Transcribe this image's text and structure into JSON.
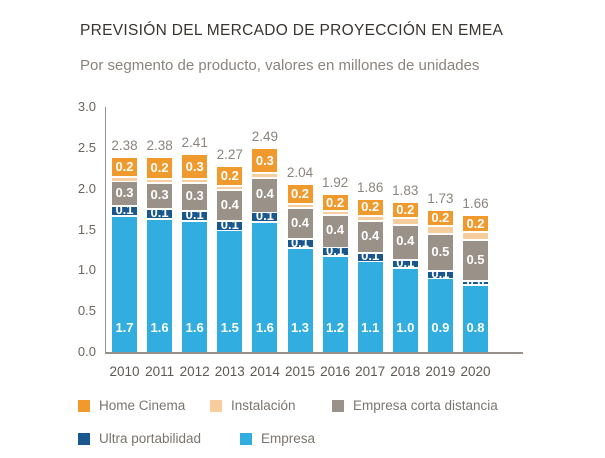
{
  "chart_data": {
    "type": "bar",
    "stacked": true,
    "title": "PREVISIÓN DEL MERCADO DE PROYECCIÓN EN EMEA",
    "subtitle": "Por segmento de producto, valores en millones de unidades",
    "categories": [
      "2010",
      "2011",
      "2012",
      "2013",
      "2014",
      "2015",
      "2016",
      "2017",
      "2018",
      "2019",
      "2020"
    ],
    "total_labels": [
      "2.38",
      "2.38",
      "2.41",
      "2.27",
      "2.49",
      "2.04",
      "1.92",
      "1.86",
      "1.83",
      "1.73",
      "1.66"
    ],
    "ylabel": "millones de unidades",
    "ylim": [
      0,
      3.0
    ],
    "yticks": [
      "3.0",
      "2.5",
      "2.0",
      "1.5",
      "1.0",
      "0.5",
      "0.0"
    ],
    "grid": false,
    "legend_position": "bottom",
    "series": [
      {
        "name": "Empresa",
        "color": "#31ade0",
        "labels": [
          "1.7",
          "1.6",
          "1.6",
          "1.5",
          "1.6",
          "1.3",
          "1.2",
          "1.1",
          "1.0",
          "0.9",
          "0.8"
        ],
        "values": [
          1.68,
          1.64,
          1.62,
          1.5,
          1.6,
          1.28,
          1.19,
          1.12,
          1.04,
          0.91,
          0.83
        ]
      },
      {
        "name": "Ultra portabilidad",
        "color": "#1a578e",
        "labels": [
          "0.1",
          "0.1",
          "0.1",
          "0.1",
          "0.1",
          "0.1",
          "0.1",
          "0.1",
          "0.1",
          "0.1",
          "0.0"
        ],
        "values": [
          0.12,
          0.12,
          0.12,
          0.12,
          0.12,
          0.11,
          0.1,
          0.1,
          0.1,
          0.09,
          0.05
        ]
      },
      {
        "name": "Empresa corta distancia",
        "color": "#9a9189",
        "labels": [
          "0.3",
          "0.3",
          "0.3",
          "0.4",
          "0.4",
          "0.4",
          "0.4",
          "0.4",
          "0.4",
          "0.5",
          "0.5"
        ],
        "values": [
          0.3,
          0.32,
          0.34,
          0.37,
          0.42,
          0.38,
          0.4,
          0.4,
          0.43,
          0.46,
          0.5
        ]
      },
      {
        "name": "Instalación",
        "color": "#f8cd9d",
        "labels": [
          null,
          null,
          null,
          null,
          null,
          null,
          null,
          null,
          null,
          null,
          null
        ],
        "values": [
          0.05,
          0.05,
          0.05,
          0.05,
          0.06,
          0.05,
          0.05,
          0.06,
          0.08,
          0.09,
          0.1
        ]
      },
      {
        "name": "Home Cinema",
        "color": "#f0992d",
        "labels": [
          "0.2",
          "0.2",
          "0.3",
          "0.2",
          "0.3",
          "0.2",
          "0.2",
          "0.2",
          "0.2",
          "0.2",
          "0.2"
        ],
        "values": [
          0.23,
          0.25,
          0.28,
          0.23,
          0.29,
          0.22,
          0.18,
          0.18,
          0.18,
          0.18,
          0.18
        ]
      }
    ],
    "legend_rows": [
      [
        "Home Cinema",
        "Instalación",
        "Empresa corta distancia"
      ],
      [
        "Ultra portabilidad",
        "Empresa"
      ]
    ]
  }
}
